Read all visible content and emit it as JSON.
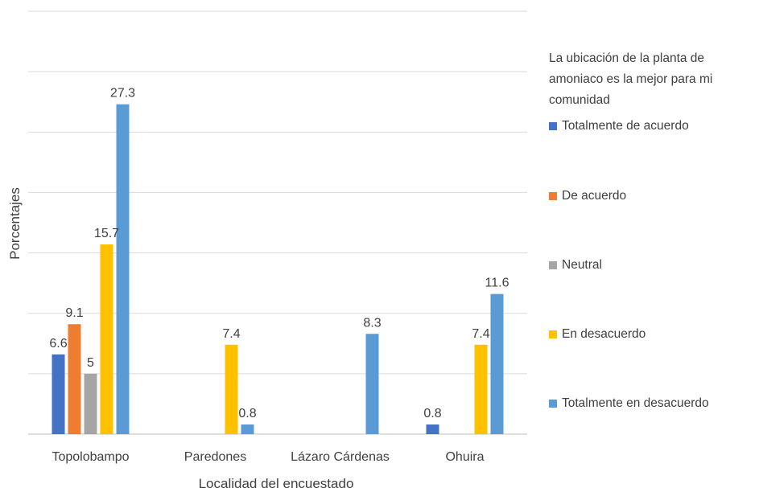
{
  "chart_data": {
    "type": "bar",
    "title": "",
    "xlabel": "Localidad del encuestado",
    "ylabel": "Porcentajes",
    "ylim": [
      0,
      35
    ],
    "grid": true,
    "legend_position": "right",
    "legend_title": "La ubicación de la planta de amoniaco es la mejor para mi comunidad",
    "categories": [
      "Topolobampo",
      "Paredones",
      "Lázaro Cárdenas",
      "Ohuira"
    ],
    "series": [
      {
        "name": "Totalmente de acuerdo",
        "color": "#4472C4",
        "values": [
          6.6,
          null,
          null,
          0.8
        ],
        "labels": [
          "6.6",
          "",
          "",
          "0.8"
        ]
      },
      {
        "name": "De acuerdo",
        "color": "#ED7D31",
        "values": [
          9.1,
          null,
          null,
          null
        ],
        "labels": [
          "9.1",
          "",
          "",
          ""
        ]
      },
      {
        "name": "Neutral",
        "color": "#A5A5A5",
        "values": [
          5,
          null,
          null,
          null
        ],
        "labels": [
          "5",
          "",
          "",
          ""
        ]
      },
      {
        "name": "En desacuerdo",
        "color": "#FFC000",
        "values": [
          15.7,
          7.4,
          null,
          7.4
        ],
        "labels": [
          "15.7",
          "7.4",
          "",
          "7.4"
        ]
      },
      {
        "name": "Totalmente en desacuerdo",
        "color": "#5B9BD5",
        "values": [
          27.3,
          0.8,
          8.3,
          11.6
        ],
        "labels": [
          "27.3",
          "0.8",
          "8.3",
          "11.6"
        ]
      }
    ]
  }
}
